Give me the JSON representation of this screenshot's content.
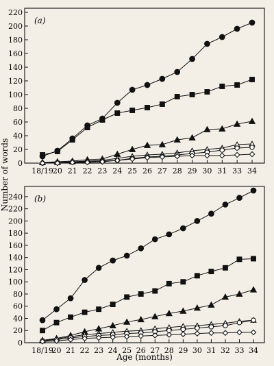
{
  "figure": {
    "ylabel": "Number of words",
    "xlabel": "Age (months)"
  },
  "chart_data": [
    {
      "type": "line",
      "panel_label": "(a)",
      "categories": [
        "18/19",
        "20",
        "21",
        "22",
        "23",
        "24",
        "25",
        "26",
        "27",
        "28",
        "29",
        "30",
        "31",
        "33",
        "34"
      ],
      "ylim": [
        0,
        220
      ],
      "yticks": [
        0,
        20,
        40,
        60,
        80,
        100,
        120,
        140,
        160,
        180,
        200,
        220
      ],
      "grid": false,
      "series": [
        {
          "marker": "filled-circle",
          "values": [
            10,
            18,
            36,
            55,
            65,
            88,
            107,
            114,
            123,
            133,
            152,
            174,
            184,
            196,
            205
          ]
        },
        {
          "marker": "filled-square",
          "values": [
            12,
            17,
            34,
            52,
            63,
            73,
            77,
            81,
            86,
            97,
            100,
            104,
            112,
            114,
            122
          ]
        },
        {
          "marker": "filled-triangle",
          "values": [
            1,
            2,
            3,
            5,
            6,
            13,
            20,
            26,
            27,
            34,
            37,
            49,
            50,
            57,
            61
          ]
        },
        {
          "marker": "open-triangle",
          "values": [
            1,
            1,
            2,
            3,
            4,
            7,
            10,
            12,
            13,
            15,
            18,
            20,
            22,
            27,
            28
          ]
        },
        {
          "marker": "open-circle",
          "values": [
            0,
            1,
            2,
            2,
            3,
            4,
            7,
            9,
            10,
            12,
            14,
            16,
            19,
            22,
            23
          ]
        },
        {
          "marker": "open-diamond",
          "values": [
            0,
            0,
            1,
            1,
            2,
            4,
            6,
            8,
            9,
            10,
            11,
            11,
            11,
            12,
            13
          ]
        }
      ]
    },
    {
      "type": "line",
      "panel_label": "(b)",
      "categories": [
        "18/19",
        "20",
        "21",
        "22",
        "23",
        "24",
        "25",
        "26",
        "27",
        "28",
        "29",
        "30",
        "31",
        "32",
        "33",
        "34"
      ],
      "ylim": [
        0,
        250
      ],
      "yticks": [
        0,
        20,
        40,
        60,
        80,
        100,
        120,
        140,
        160,
        180,
        200,
        220,
        240
      ],
      "grid": false,
      "series": [
        {
          "marker": "filled-circle",
          "values": [
            37,
            55,
            73,
            103,
            123,
            135,
            143,
            155,
            170,
            178,
            188,
            200,
            212,
            227,
            238,
            250
          ]
        },
        {
          "marker": "filled-square",
          "values": [
            20,
            33,
            42,
            50,
            55,
            63,
            75,
            80,
            85,
            97,
            100,
            110,
            117,
            123,
            137,
            138
          ]
        },
        {
          "marker": "filled-triangle",
          "values": [
            4,
            7,
            12,
            18,
            23,
            28,
            34,
            38,
            43,
            48,
            52,
            57,
            62,
            75,
            80,
            87
          ]
        },
        {
          "marker": "open-triangle",
          "values": [
            3,
            6,
            10,
            13,
            15,
            17,
            19,
            20,
            23,
            25,
            27,
            28,
            30,
            32,
            35,
            37
          ]
        },
        {
          "marker": "open-circle",
          "values": [
            3,
            5,
            8,
            10,
            12,
            13,
            15,
            16,
            18,
            20,
            22,
            24,
            26,
            28,
            33,
            37
          ]
        },
        {
          "marker": "open-diamond",
          "values": [
            2,
            3,
            5,
            7,
            8,
            9,
            10,
            11,
            12,
            13,
            14,
            15,
            16,
            16,
            17,
            17
          ]
        }
      ]
    }
  ]
}
